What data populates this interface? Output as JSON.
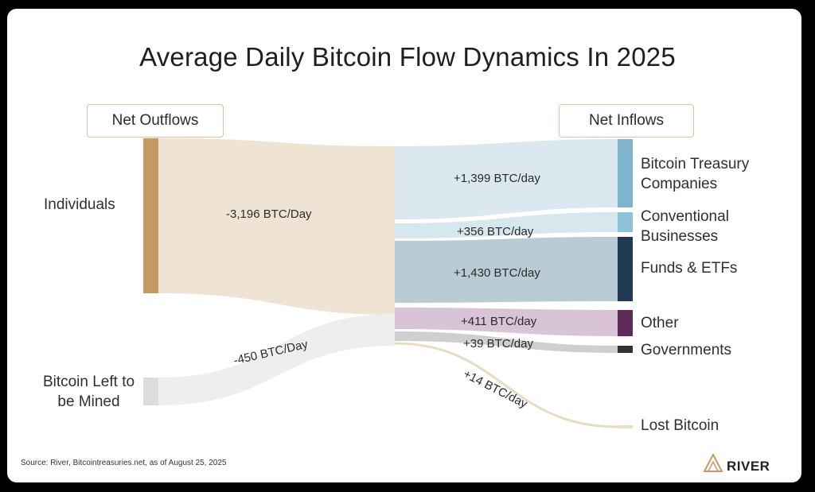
{
  "chart_data": {
    "type": "sankey",
    "title": "Average Daily Bitcoin Flow Dynamics In 2025",
    "headers": {
      "left": "Net Outflows",
      "right": "Net Inflows"
    },
    "sources": [
      {
        "name": "Individuals",
        "label": "-3,196 BTC/Day",
        "value": -3196
      },
      {
        "name": "Bitcoin Left to be Mined",
        "label": "-450 BTC/Day",
        "value": -450
      }
    ],
    "targets": [
      {
        "name": "Bitcoin Treasury Companies",
        "label": "+1,399 BTC/day",
        "value": 1399,
        "color": "#7fb4cf"
      },
      {
        "name": "Conventional Businesses",
        "label": "+356 BTC/day",
        "value": 356,
        "color": "#8ec2d6"
      },
      {
        "name": "Funds & ETFs",
        "label": "+1,430 BTC/day",
        "value": 1430,
        "color": "#223a52"
      },
      {
        "name": "Other",
        "label": "+411 BTC/day",
        "value": 411,
        "color": "#5d2a5a"
      },
      {
        "name": "Governments",
        "label": "+39 BTC/day",
        "value": 39,
        "color": "#333333"
      },
      {
        "name": "Lost Bitcoin",
        "label": "+14 BTC/day",
        "value": 14,
        "color": "#e8dcc3"
      }
    ],
    "source_colors": {
      "Individuals": "#c49a62",
      "Bitcoin Left to be Mined": "#dcdcdc"
    }
  },
  "footer": {
    "source": "Source: River, Bitcointreasuries.net, as of August 25, 2025",
    "brand": "RIVER"
  }
}
